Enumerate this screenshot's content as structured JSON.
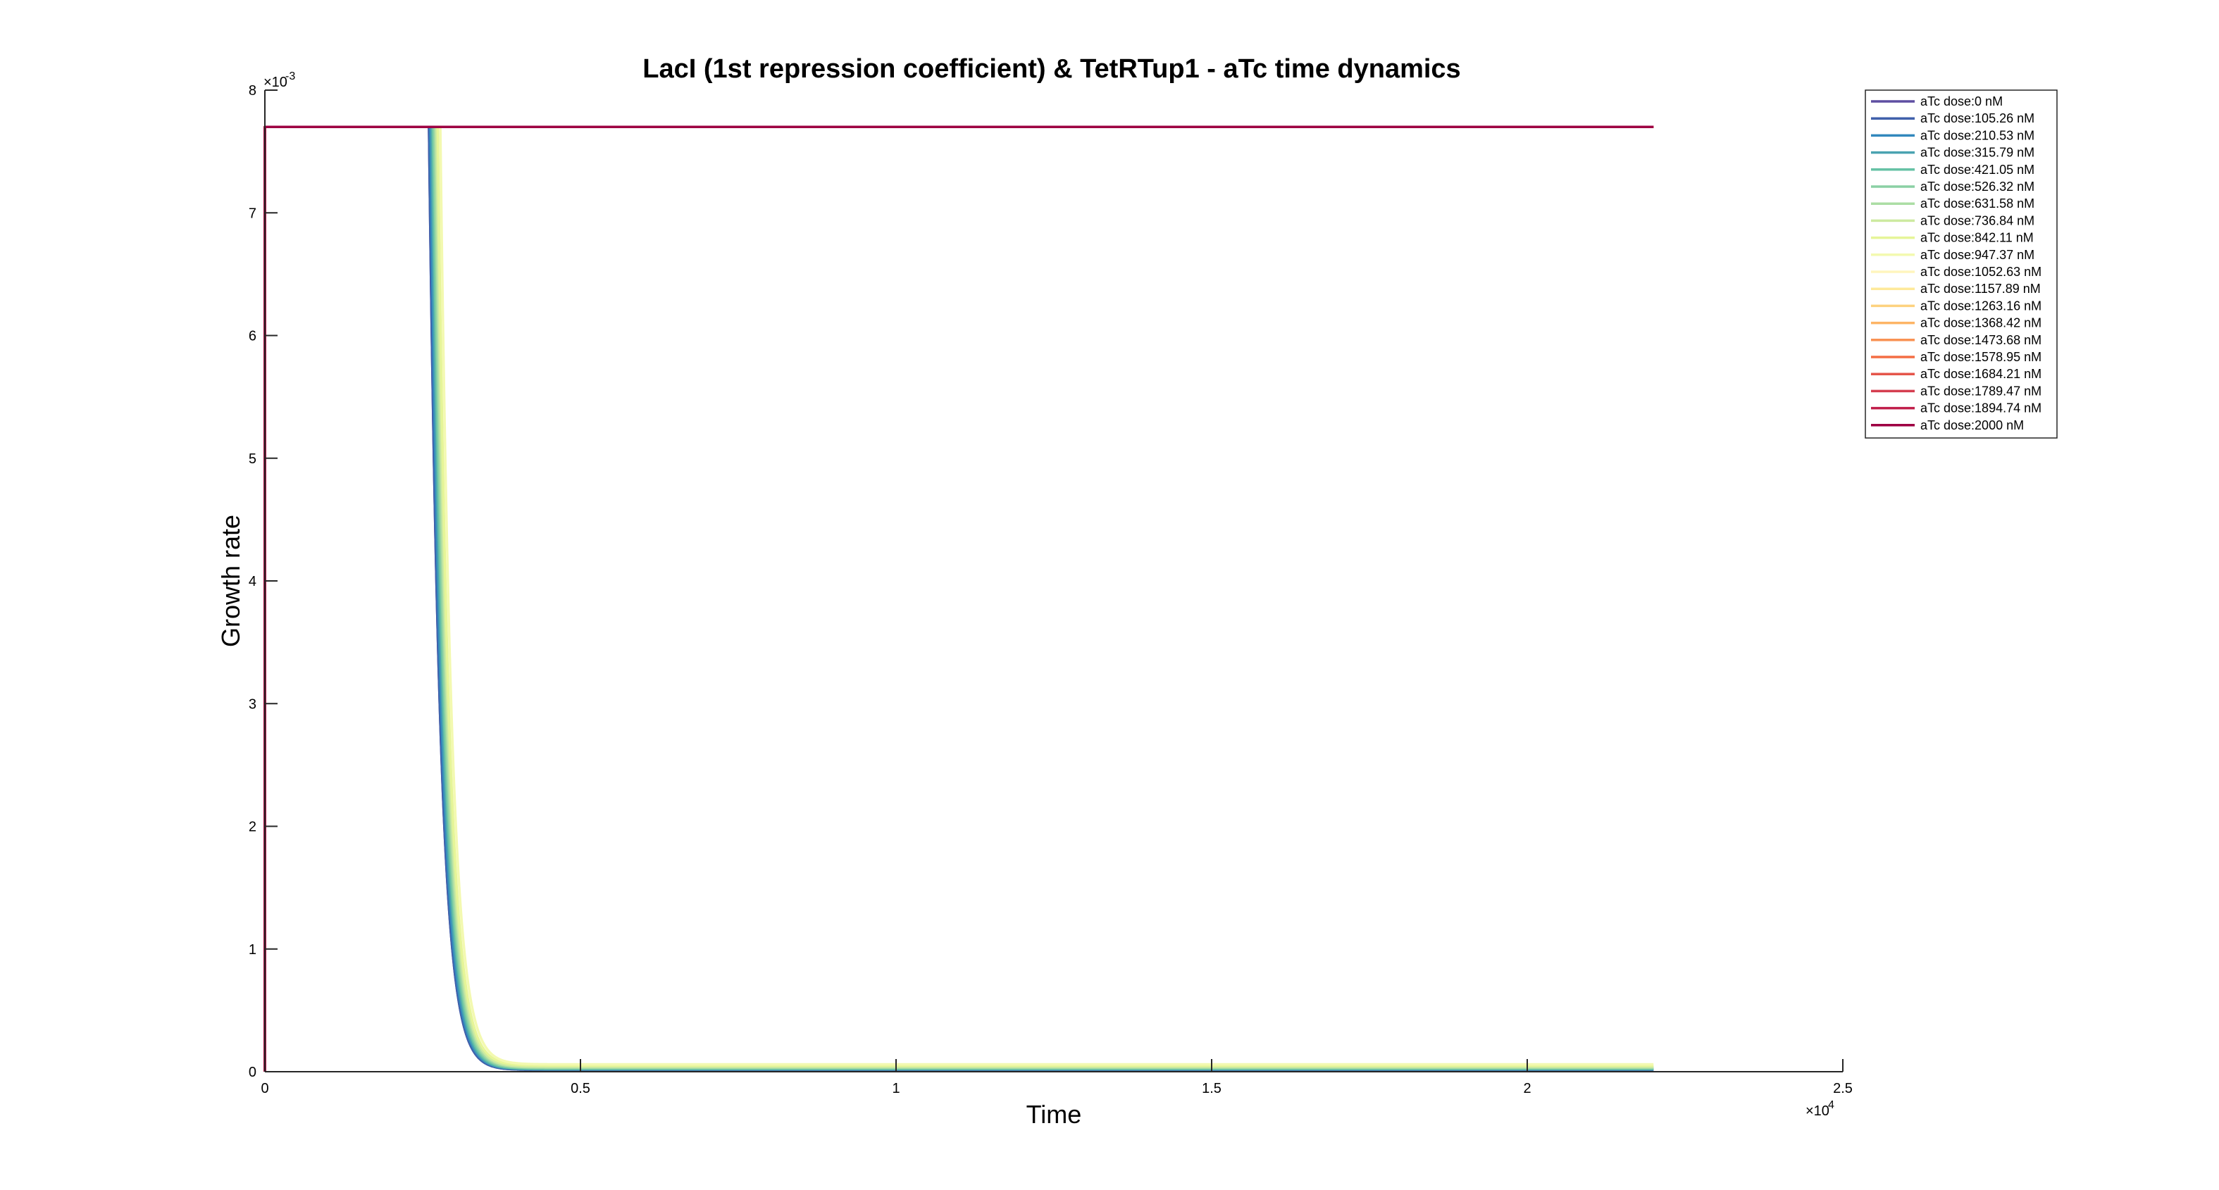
{
  "chart_data": {
    "type": "line",
    "title": "LacI (1st repression coefficient) & TetRTup1 - aTc time dynamics",
    "xlabel": "Time",
    "ylabel": "Growth rate",
    "x_exponent_label": "×10",
    "x_exponent_power": "4",
    "y_exponent_label": "×10",
    "y_exponent_power": "-3",
    "xlim": [
      0,
      25000
    ],
    "ylim": [
      0,
      0.008
    ],
    "xticks": [
      0,
      5000,
      10000,
      15000,
      20000,
      25000
    ],
    "xtick_labels": [
      "0",
      "0.5",
      "1",
      "1.5",
      "2",
      "2.5"
    ],
    "yticks": [
      0,
      0.001,
      0.002,
      0.003,
      0.004,
      0.005,
      0.006,
      0.007,
      0.008
    ],
    "ytick_labels": [
      "0",
      "1",
      "2",
      "3",
      "4",
      "5",
      "6",
      "7",
      "8"
    ],
    "legend_position": "top-right",
    "plateau": 0.0077,
    "t_end": 22000,
    "series": [
      {
        "name": "aTc dose:0 nM",
        "color": "#5e4fa2",
        "t_drop": 2600,
        "tail": 1.5e-05,
        "plateau_only": false
      },
      {
        "name": "aTc dose:105.26 nM",
        "color": "#4060ab",
        "t_drop": 2600,
        "tail": 1.5e-05,
        "plateau_only": false
      },
      {
        "name": "aTc dose:210.53 nM",
        "color": "#3288bd",
        "t_drop": 2620,
        "tail": 2e-05,
        "plateau_only": false
      },
      {
        "name": "aTc dose:315.79 nM",
        "color": "#4aa3b1",
        "t_drop": 2640,
        "tail": 2e-05,
        "plateau_only": false
      },
      {
        "name": "aTc dose:421.05 nM",
        "color": "#66c2a5",
        "t_drop": 2660,
        "tail": 2.5e-05,
        "plateau_only": false
      },
      {
        "name": "aTc dose:526.32 nM",
        "color": "#8ad0a4",
        "t_drop": 2680,
        "tail": 3e-05,
        "plateau_only": false
      },
      {
        "name": "aTc dose:631.58 nM",
        "color": "#abdda4",
        "t_drop": 2700,
        "tail": 3.5e-05,
        "plateau_only": false
      },
      {
        "name": "aTc dose:736.84 nM",
        "color": "#cdeaa0",
        "t_drop": 2720,
        "tail": 4e-05,
        "plateau_only": false
      },
      {
        "name": "aTc dose:842.11 nM",
        "color": "#e6f598",
        "t_drop": 2740,
        "tail": 5e-05,
        "plateau_only": false
      },
      {
        "name": "aTc dose:947.37 nM",
        "color": "#f3f9b0",
        "t_drop": 2780,
        "tail": 6e-05,
        "plateau_only": false
      },
      {
        "name": "aTc dose:1052.63 nM",
        "color": "#fff5bd",
        "t_drop": 2800,
        "tail": 6e-05,
        "plateau_only": true
      },
      {
        "name": "aTc dose:1157.89 nM",
        "color": "#fee99a",
        "t_drop": 2800,
        "tail": 6e-05,
        "plateau_only": true
      },
      {
        "name": "aTc dose:1263.16 nM",
        "color": "#fdd27f",
        "t_drop": 2800,
        "tail": 6e-05,
        "plateau_only": true
      },
      {
        "name": "aTc dose:1368.42 nM",
        "color": "#fdb465",
        "t_drop": 2800,
        "tail": 6e-05,
        "plateau_only": true
      },
      {
        "name": "aTc dose:1473.68 nM",
        "color": "#f99254",
        "t_drop": 2800,
        "tail": 6e-05,
        "plateau_only": true
      },
      {
        "name": "aTc dose:1578.95 nM",
        "color": "#f46d43",
        "t_drop": 2800,
        "tail": 6e-05,
        "plateau_only": true
      },
      {
        "name": "aTc dose:1684.21 nM",
        "color": "#e5554a",
        "t_drop": 2800,
        "tail": 6e-05,
        "plateau_only": true
      },
      {
        "name": "aTc dose:1789.47 nM",
        "color": "#d53e4f",
        "t_drop": 2800,
        "tail": 6e-05,
        "plateau_only": true
      },
      {
        "name": "aTc dose:1894.74 nM",
        "color": "#c01f4b",
        "t_drop": 2800,
        "tail": 6e-05,
        "plateau_only": true
      },
      {
        "name": "aTc dose:2000 nM",
        "color": "#9e0142",
        "t_drop": 2800,
        "tail": 6e-05,
        "plateau_only": true
      }
    ]
  }
}
